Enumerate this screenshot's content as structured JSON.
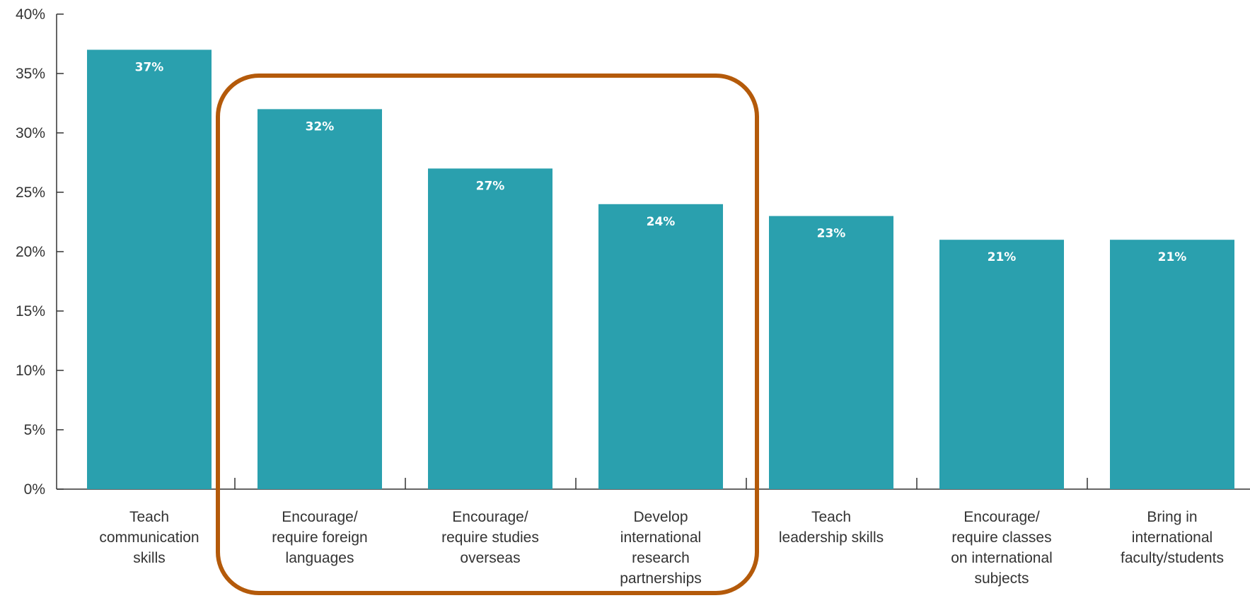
{
  "chart_data": {
    "type": "bar",
    "categories": [
      [
        "Teach",
        "communication",
        "skills"
      ],
      [
        "Encourage/",
        "require foreign",
        "languages"
      ],
      [
        "Encourage/",
        "require studies",
        "overseas"
      ],
      [
        "Develop",
        "international",
        "research",
        "partnerships"
      ],
      [
        "Teach",
        "leadership skills"
      ],
      [
        "Encourage/",
        "require classes",
        "on international",
        "subjects"
      ],
      [
        "Bring in",
        "international",
        "faculty/students"
      ]
    ],
    "values": [
      37,
      32,
      27,
      24,
      23,
      21,
      21
    ],
    "data_labels": [
      "37%",
      "32%",
      "27%",
      "24%",
      "23%",
      "21%",
      "21%"
    ],
    "y_ticks": [
      "0%",
      "5%",
      "10%",
      "15%",
      "20%",
      "25%",
      "30%",
      "35%",
      "40%"
    ],
    "ylim": [
      0,
      40
    ],
    "title": "",
    "xlabel": "",
    "ylabel": "",
    "grid": false,
    "highlight": {
      "from_index": 1,
      "to_index": 3
    },
    "colors": {
      "bar": "#2aa0ae",
      "highlight": "#b45a0a",
      "axis": "#333333"
    }
  }
}
